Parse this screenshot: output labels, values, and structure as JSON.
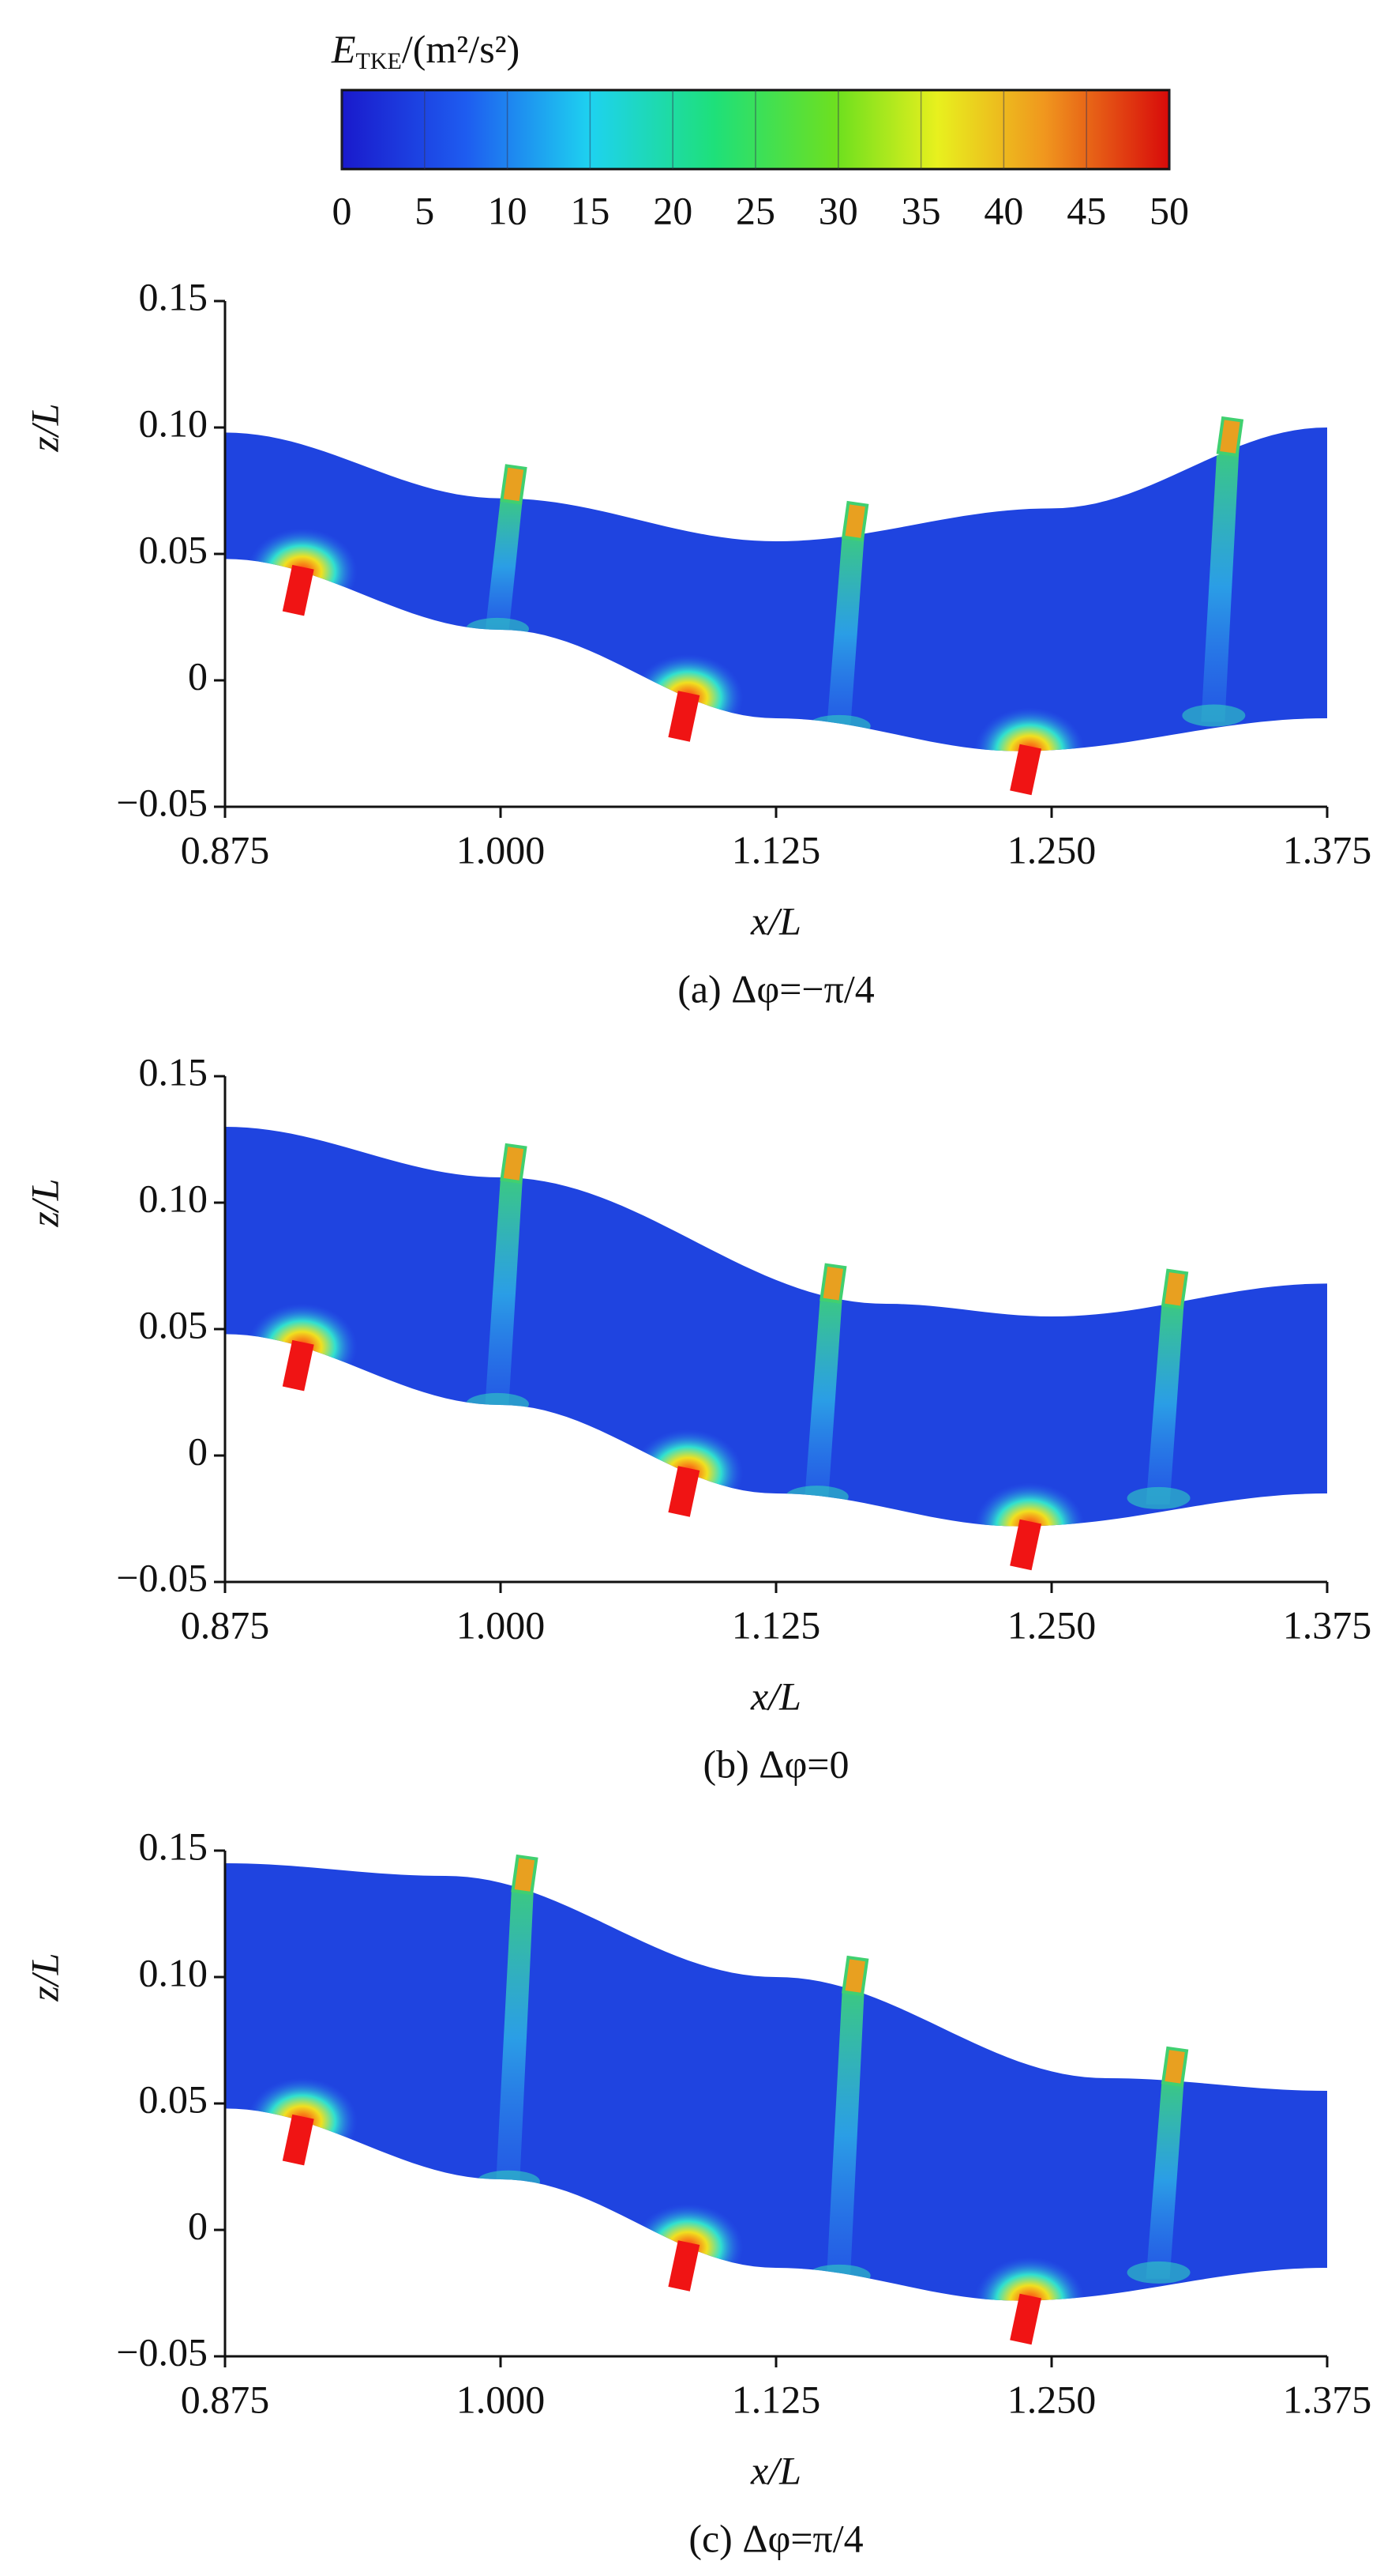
{
  "colorbar": {
    "symbol": "E",
    "subscript": "TKE",
    "unit": "/(m²/s²)",
    "lim": [
      0,
      50
    ],
    "ticks": [
      0,
      5,
      10,
      15,
      20,
      25,
      30,
      35,
      40,
      45,
      50
    ]
  },
  "chart_data": [
    {
      "type": "contour",
      "caption": "(a) Δφ=−π/4",
      "xlabel": "x/L",
      "ylabel": "z/L",
      "xlim": [
        0.875,
        1.375
      ],
      "xticks": [
        0.875,
        {
          "value": 1,
          "label": "1.000"
        },
        1.125,
        {
          "value": 1.25,
          "label": "1.250"
        },
        1.375
      ],
      "ylim": [
        -0.05,
        0.15
      ],
      "yticks": [
        {
          "value": -0.05,
          "label": "−0.05"
        },
        0,
        0.05,
        {
          "value": 0.1,
          "label": "0.10"
        },
        0.15
      ]
    },
    {
      "type": "contour",
      "caption": "(b) Δφ=0",
      "xlabel": "x/L",
      "ylabel": "z/L",
      "xlim": [
        0.875,
        1.375
      ],
      "xticks": [
        0.875,
        {
          "value": 1,
          "label": "1.000"
        },
        1.125,
        {
          "value": 1.25,
          "label": "1.250"
        },
        1.375
      ],
      "ylim": [
        -0.05,
        0.15
      ],
      "yticks": [
        {
          "value": -0.05,
          "label": "−0.05"
        },
        0,
        0.05,
        {
          "value": 0.1,
          "label": "0.10"
        },
        0.15
      ]
    },
    {
      "type": "contour",
      "caption": "(c) Δφ=π/4",
      "xlabel": "x/L",
      "ylabel": "z/L",
      "xlim": [
        0.875,
        1.375
      ],
      "xticks": [
        0.875,
        {
          "value": 1,
          "label": "1.000"
        },
        1.125,
        {
          "value": 1.25,
          "label": "1.250"
        },
        1.375
      ],
      "ylim": [
        -0.05,
        0.15
      ],
      "yticks": [
        {
          "value": -0.05,
          "label": "−0.05"
        },
        0,
        0.05,
        {
          "value": 0.1,
          "label": "0.10"
        },
        0.15
      ]
    }
  ]
}
